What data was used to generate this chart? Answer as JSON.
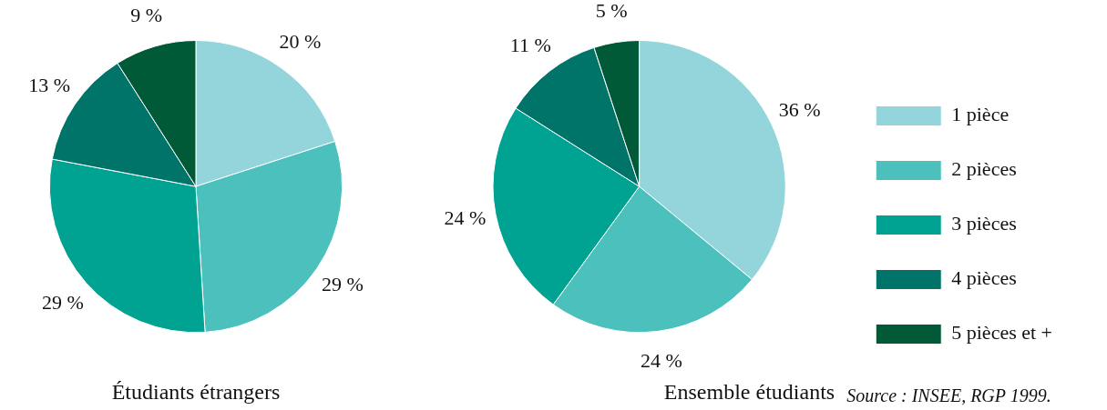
{
  "chart_data": [
    {
      "type": "pie",
      "title": "Étudiants étrangers",
      "categories": [
        null,
        null,
        null,
        null,
        null
      ],
      "values": [
        20,
        29,
        29,
        13,
        9
      ],
      "value_labels": [
        "20 %",
        "29 %",
        "29 %",
        "13 %",
        "9 %"
      ],
      "colors": [
        "#94d5db",
        "#4bc0bc",
        "#00a391",
        "#007469",
        "#005a38"
      ]
    },
    {
      "type": "pie",
      "title": "Ensemble étudiants",
      "categories": [
        "1 pièce",
        "2 pièces",
        "3 pièces",
        "4 pièces",
        "5 pièces et +"
      ],
      "values": [
        36,
        24,
        24,
        11,
        5
      ],
      "value_labels": [
        "36 %",
        "24 %",
        "24 %",
        "11 %",
        "5 %"
      ],
      "colors": [
        "#94d5db",
        "#4bc0bc",
        "#00a391",
        "#007469",
        "#005a38"
      ],
      "legend": "right",
      "annotations": [
        "Source : INSEE, RGP 1999."
      ]
    }
  ]
}
